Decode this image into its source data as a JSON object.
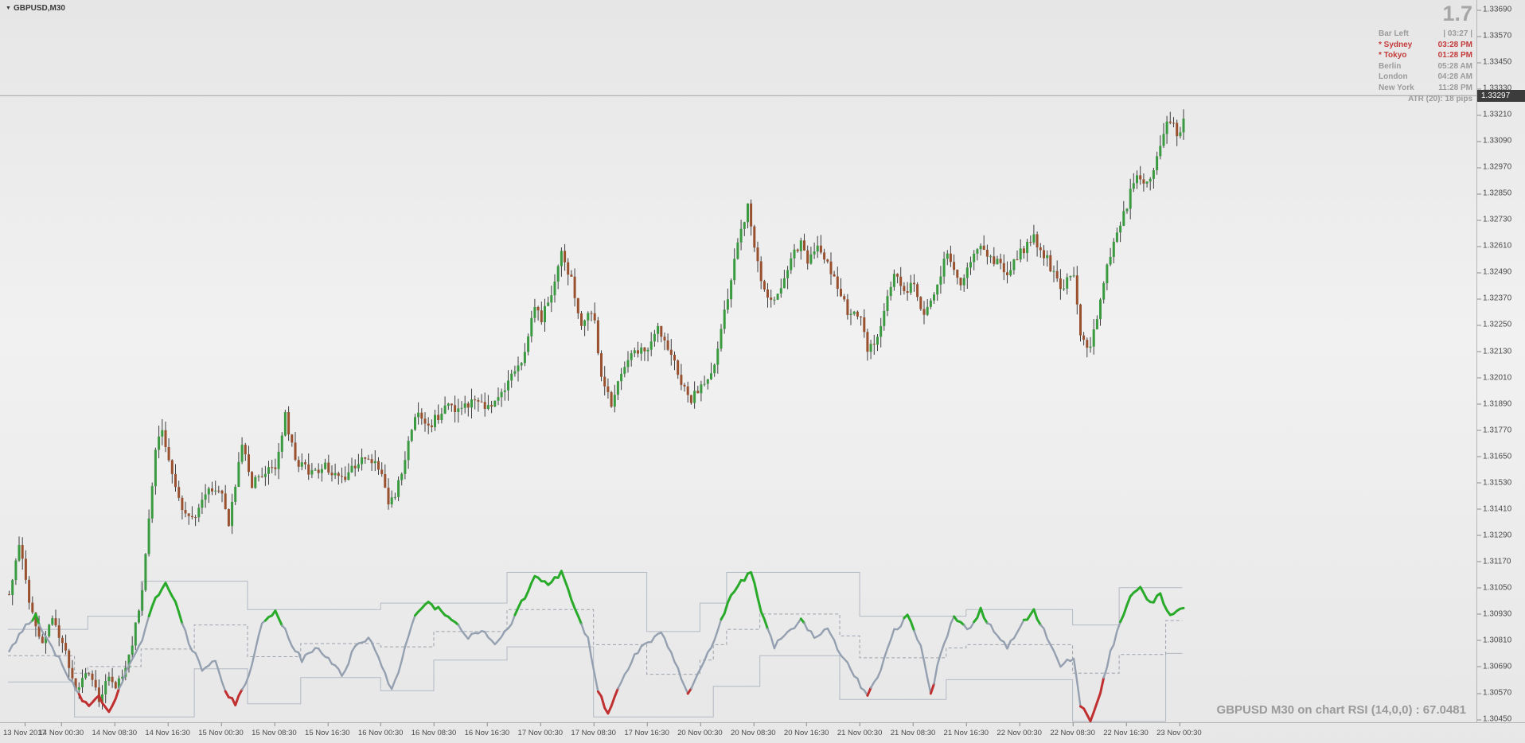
{
  "window": {
    "symbol_label": "GBPUSD,M30"
  },
  "header": {
    "spread": "1.7",
    "colors": {
      "red": "#c43b3b",
      "gray": "#9b9b9b"
    },
    "info_rows": [
      {
        "label": "Bar Left",
        "value": "| 03:27 |",
        "color": "gray"
      },
      {
        "label": "* Sydney",
        "value": "03:28 PM",
        "color": "red"
      },
      {
        "label": "* Tokyo",
        "value": "01:28 PM",
        "color": "red"
      },
      {
        "label": "Berlin",
        "value": "05:28 AM",
        "color": "gray"
      },
      {
        "label": "London",
        "value": "04:28 AM",
        "color": "gray"
      },
      {
        "label": "New York",
        "value": "11:28 PM",
        "color": "gray"
      }
    ],
    "atr_label": "ATR (20): 18 pips"
  },
  "price_axis": {
    "labels": [
      "1.33690",
      "1.33570",
      "1.33450",
      "1.33330",
      "1.33210",
      "1.33090",
      "1.32970",
      "1.32850",
      "1.32730",
      "1.32610",
      "1.32490",
      "1.32370",
      "1.32250",
      "1.32130",
      "1.32010",
      "1.31890",
      "1.31770",
      "1.31650",
      "1.31530",
      "1.31410",
      "1.31290",
      "1.31170",
      "1.31050",
      "1.30930",
      "1.30810",
      "1.30690",
      "1.30570",
      "1.30450"
    ],
    "current_price": "1.33297"
  },
  "time_axis": {
    "labels": [
      "13 Nov 2017",
      "14 Nov 00:30",
      "14 Nov 08:30",
      "14 Nov 16:30",
      "15 Nov 00:30",
      "15 Nov 08:30",
      "15 Nov 16:30",
      "16 Nov 00:30",
      "16 Nov 08:30",
      "16 Nov 16:30",
      "17 Nov 00:30",
      "17 Nov 08:30",
      "17 Nov 16:30",
      "20 Nov 00:30",
      "20 Nov 08:30",
      "20 Nov 16:30",
      "21 Nov 00:30",
      "21 Nov 08:30",
      "21 Nov 16:30",
      "22 Nov 00:30",
      "22 Nov 08:30",
      "22 Nov 16:30",
      "23 Nov 00:30"
    ]
  },
  "footer": {
    "indicator_label": "GBPUSD M30 on chart RSI (14,0,0) : 67.0481"
  },
  "chart_data": {
    "type": "candlestick",
    "symbol": "GBPUSD",
    "timeframe": "M30",
    "price_range": [
      1.3045,
      1.3369
    ],
    "current_price": 1.33297,
    "bars_total": 354,
    "bars_per_label": 16,
    "colors": {
      "up": "#3a9a40",
      "down": "#99502e",
      "wick": "#3f3f3f"
    },
    "close_waypoints": [
      [
        0,
        1.3102
      ],
      [
        3,
        1.3125
      ],
      [
        6,
        1.3098
      ],
      [
        10,
        1.3078
      ],
      [
        13,
        1.3092
      ],
      [
        16,
        1.308
      ],
      [
        20,
        1.3058
      ],
      [
        24,
        1.3068
      ],
      [
        27,
        1.3052
      ],
      [
        30,
        1.3065
      ],
      [
        32,
        1.306
      ],
      [
        36,
        1.3072
      ],
      [
        40,
        1.3105
      ],
      [
        44,
        1.3168
      ],
      [
        46,
        1.3178
      ],
      [
        48,
        1.3162
      ],
      [
        52,
        1.3142
      ],
      [
        56,
        1.3138
      ],
      [
        60,
        1.3152
      ],
      [
        64,
        1.3148
      ],
      [
        66,
        1.3135
      ],
      [
        70,
        1.317
      ],
      [
        73,
        1.3152
      ],
      [
        76,
        1.3158
      ],
      [
        80,
        1.316
      ],
      [
        83,
        1.3185
      ],
      [
        86,
        1.3162
      ],
      [
        90,
        1.3158
      ],
      [
        96,
        1.316
      ],
      [
        100,
        1.3155
      ],
      [
        104,
        1.3162
      ],
      [
        108,
        1.3165
      ],
      [
        112,
        1.3158
      ],
      [
        114,
        1.3142
      ],
      [
        118,
        1.3155
      ],
      [
        122,
        1.3185
      ],
      [
        126,
        1.3178
      ],
      [
        128,
        1.3182
      ],
      [
        132,
        1.319
      ],
      [
        136,
        1.3185
      ],
      [
        140,
        1.3192
      ],
      [
        144,
        1.3188
      ],
      [
        148,
        1.3195
      ],
      [
        152,
        1.3205
      ],
      [
        155,
        1.3212
      ],
      [
        158,
        1.3235
      ],
      [
        160,
        1.3228
      ],
      [
        163,
        1.324
      ],
      [
        166,
        1.3258
      ],
      [
        169,
        1.3245
      ],
      [
        172,
        1.3222
      ],
      [
        175,
        1.3232
      ],
      [
        176,
        1.3228
      ],
      [
        178,
        1.32
      ],
      [
        181,
        1.3188
      ],
      [
        184,
        1.3205
      ],
      [
        188,
        1.3215
      ],
      [
        192,
        1.3212
      ],
      [
        195,
        1.3222
      ],
      [
        198,
        1.3215
      ],
      [
        202,
        1.3198
      ],
      [
        205,
        1.319
      ],
      [
        208,
        1.3198
      ],
      [
        212,
        1.3205
      ],
      [
        216,
        1.3238
      ],
      [
        219,
        1.3262
      ],
      [
        222,
        1.328
      ],
      [
        224,
        1.3258
      ],
      [
        227,
        1.3242
      ],
      [
        230,
        1.3235
      ],
      [
        234,
        1.3252
      ],
      [
        238,
        1.3262
      ],
      [
        240,
        1.3255
      ],
      [
        244,
        1.326
      ],
      [
        248,
        1.3245
      ],
      [
        252,
        1.3232
      ],
      [
        256,
        1.3228
      ],
      [
        258,
        1.3212
      ],
      [
        262,
        1.3225
      ],
      [
        266,
        1.3248
      ],
      [
        270,
        1.324
      ],
      [
        272,
        1.3245
      ],
      [
        275,
        1.3228
      ],
      [
        278,
        1.324
      ],
      [
        282,
        1.3258
      ],
      [
        286,
        1.3245
      ],
      [
        288,
        1.325
      ],
      [
        292,
        1.3262
      ],
      [
        296,
        1.3255
      ],
      [
        300,
        1.3248
      ],
      [
        304,
        1.3258
      ],
      [
        308,
        1.3265
      ],
      [
        312,
        1.3255
      ],
      [
        316,
        1.3242
      ],
      [
        320,
        1.3248
      ],
      [
        322,
        1.322
      ],
      [
        325,
        1.3215
      ],
      [
        328,
        1.3235
      ],
      [
        331,
        1.3258
      ],
      [
        334,
        1.3272
      ],
      [
        336,
        1.328
      ],
      [
        339,
        1.3295
      ],
      [
        342,
        1.3288
      ],
      [
        345,
        1.3302
      ],
      [
        348,
        1.3318
      ],
      [
        352,
        1.3312
      ],
      [
        354,
        1.333
      ]
    ],
    "indicator": {
      "name": "on chart RSI (14,0,0)",
      "value": 67.0481,
      "colors": {
        "hi": "#2aaa2a",
        "lo": "#c03030",
        "mid": "#94a0b0",
        "band": "#b2b9c3",
        "mid_dash": "#9aa2ac"
      },
      "hi_threshold": 1.3089,
      "lo_threshold": 1.3058,
      "waypoints": [
        [
          0,
          1.3075
        ],
        [
          4,
          1.3086
        ],
        [
          8,
          1.3092
        ],
        [
          12,
          1.308
        ],
        [
          16,
          1.307
        ],
        [
          20,
          1.3058
        ],
        [
          24,
          1.305
        ],
        [
          27,
          1.3056
        ],
        [
          30,
          1.3048
        ],
        [
          33,
          1.3058
        ],
        [
          36,
          1.307
        ],
        [
          40,
          1.3082
        ],
        [
          44,
          1.31
        ],
        [
          47,
          1.3108
        ],
        [
          50,
          1.3098
        ],
        [
          54,
          1.308
        ],
        [
          58,
          1.3068
        ],
        [
          62,
          1.3072
        ],
        [
          65,
          1.3058
        ],
        [
          68,
          1.3052
        ],
        [
          72,
          1.3065
        ],
        [
          76,
          1.3088
        ],
        [
          80,
          1.3095
        ],
        [
          84,
          1.3082
        ],
        [
          88,
          1.3072
        ],
        [
          92,
          1.3078
        ],
        [
          96,
          1.3072
        ],
        [
          100,
          1.3065
        ],
        [
          104,
          1.3078
        ],
        [
          108,
          1.3082
        ],
        [
          112,
          1.307
        ],
        [
          115,
          1.3058
        ],
        [
          118,
          1.3072
        ],
        [
          122,
          1.3092
        ],
        [
          126,
          1.3098
        ],
        [
          130,
          1.3094
        ],
        [
          134,
          1.309
        ],
        [
          138,
          1.3082
        ],
        [
          142,
          1.3086
        ],
        [
          146,
          1.308
        ],
        [
          150,
          1.3086
        ],
        [
          154,
          1.3098
        ],
        [
          158,
          1.311
        ],
        [
          162,
          1.3106
        ],
        [
          166,
          1.3112
        ],
        [
          170,
          1.3095
        ],
        [
          174,
          1.3082
        ],
        [
          177,
          1.3058
        ],
        [
          180,
          1.3048
        ],
        [
          184,
          1.3062
        ],
        [
          188,
          1.3075
        ],
        [
          192,
          1.308
        ],
        [
          196,
          1.3085
        ],
        [
          200,
          1.3072
        ],
        [
          204,
          1.3056
        ],
        [
          208,
          1.3068
        ],
        [
          212,
          1.3082
        ],
        [
          216,
          1.3098
        ],
        [
          220,
          1.3108
        ],
        [
          223,
          1.3112
        ],
        [
          226,
          1.3095
        ],
        [
          230,
          1.3078
        ],
        [
          234,
          1.3085
        ],
        [
          238,
          1.309
        ],
        [
          242,
          1.3082
        ],
        [
          246,
          1.3086
        ],
        [
          250,
          1.3075
        ],
        [
          254,
          1.3065
        ],
        [
          258,
          1.3055
        ],
        [
          262,
          1.3068
        ],
        [
          266,
          1.3085
        ],
        [
          270,
          1.3092
        ],
        [
          274,
          1.3078
        ],
        [
          277,
          1.3056
        ],
        [
          280,
          1.3075
        ],
        [
          284,
          1.3092
        ],
        [
          288,
          1.3085
        ],
        [
          292,
          1.3095
        ],
        [
          296,
          1.3085
        ],
        [
          300,
          1.3078
        ],
        [
          304,
          1.3088
        ],
        [
          308,
          1.3095
        ],
        [
          312,
          1.3082
        ],
        [
          316,
          1.307
        ],
        [
          320,
          1.3072
        ],
        [
          322,
          1.3052
        ],
        [
          325,
          1.3045
        ],
        [
          328,
          1.3058
        ],
        [
          331,
          1.3075
        ],
        [
          334,
          1.309
        ],
        [
          337,
          1.31
        ],
        [
          340,
          1.3105
        ],
        [
          343,
          1.3098
        ],
        [
          346,
          1.3102
        ],
        [
          349,
          1.3092
        ],
        [
          352,
          1.3096
        ],
        [
          354,
          1.3095
        ]
      ],
      "upper_band_steps": [
        [
          0,
          1.3086
        ],
        [
          24,
          1.3092
        ],
        [
          40,
          1.3108
        ],
        [
          72,
          1.3095
        ],
        [
          112,
          1.3098
        ],
        [
          150,
          1.3112
        ],
        [
          192,
          1.3085
        ],
        [
          208,
          1.3098
        ],
        [
          216,
          1.3112
        ],
        [
          256,
          1.3092
        ],
        [
          288,
          1.3095
        ],
        [
          320,
          1.3088
        ],
        [
          334,
          1.3105
        ]
      ],
      "lower_band_steps": [
        [
          0,
          1.3062
        ],
        [
          20,
          1.3046
        ],
        [
          56,
          1.3068
        ],
        [
          72,
          1.3052
        ],
        [
          88,
          1.3064
        ],
        [
          112,
          1.3058
        ],
        [
          128,
          1.3072
        ],
        [
          150,
          1.3078
        ],
        [
          176,
          1.3046
        ],
        [
          212,
          1.306
        ],
        [
          226,
          1.3074
        ],
        [
          250,
          1.3054
        ],
        [
          282,
          1.3063
        ],
        [
          320,
          1.3044
        ],
        [
          348,
          1.3075
        ]
      ]
    }
  }
}
